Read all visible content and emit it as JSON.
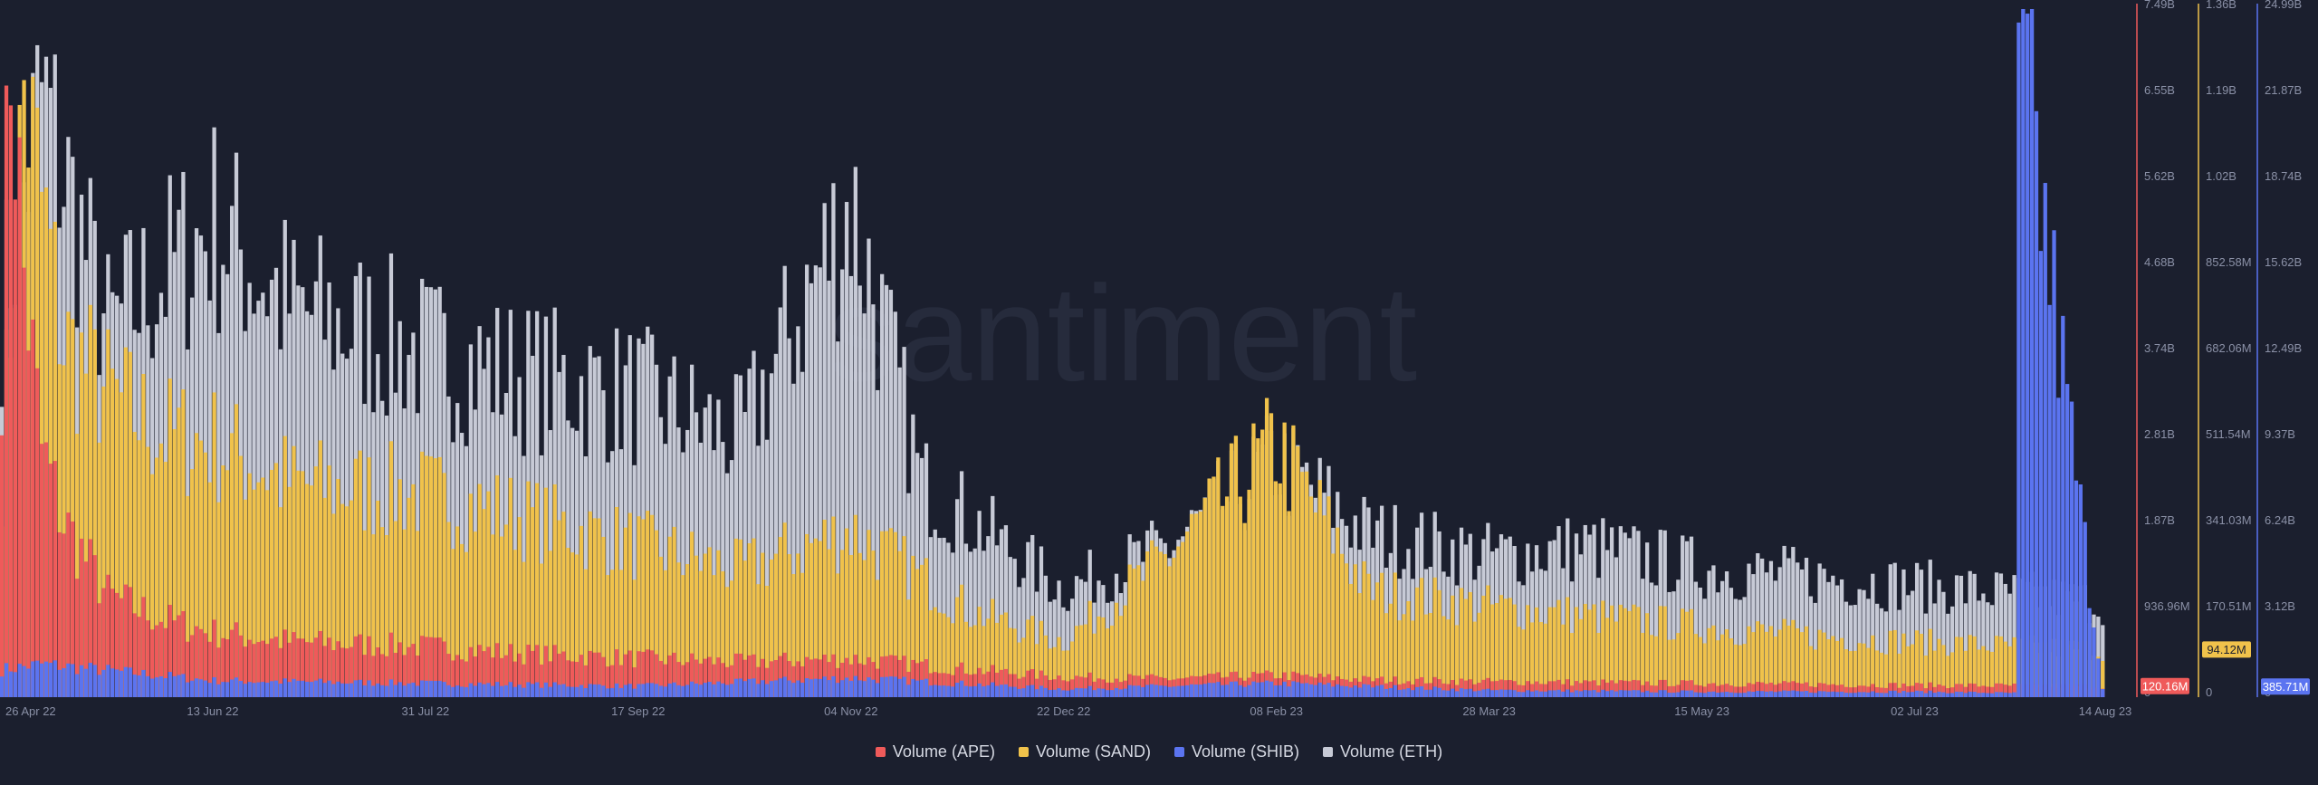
{
  "chart_data": {
    "type": "bar",
    "stacked": true,
    "watermark": "santiment",
    "x_tick_labels": [
      "26 Apr 22",
      "13 Jun 22",
      "31 Jul 22",
      "17 Sep 22",
      "04 Nov 22",
      "22 Dec 22",
      "08 Feb 23",
      "28 Mar 23",
      "15 May 23",
      "02 Jul 23",
      "14 Aug 23"
    ],
    "x_range": [
      "2022-04-26",
      "2023-08-14"
    ],
    "axes": [
      {
        "series": "Volume (APE)",
        "color": "#ef5a5a",
        "ticks": [
          "7.49B",
          "6.55B",
          "5.62B",
          "4.68B",
          "3.74B",
          "2.81B",
          "1.87B",
          "936.96M",
          "0"
        ],
        "ylim": [
          0,
          7490000000
        ],
        "current": "120.16M"
      },
      {
        "series": "Volume (SAND)",
        "color": "#f0c24b",
        "ticks": [
          "1.36B",
          "1.19B",
          "1.02B",
          "852.58M",
          "682.06M",
          "511.54M",
          "341.03M",
          "170.51M",
          "0"
        ],
        "ylim": [
          0,
          1360000000
        ],
        "current": "94.12M"
      },
      {
        "series": "Volume (SHIB)",
        "color": "#5b74f0",
        "ticks": [
          "24.99B",
          "21.87B",
          "18.74B",
          "15.62B",
          "12.49B",
          "9.37B",
          "6.24B",
          "3.12B",
          "0"
        ],
        "ylim": [
          0,
          24990000000
        ],
        "current": "385.71M"
      }
    ],
    "series": [
      {
        "name": "Volume (APE)",
        "color": "#ef5a5a",
        "unit": "USD",
        "dates": [
          "2022-04-26",
          "2022-04-28",
          "2022-05-01",
          "2022-05-05",
          "2022-05-10",
          "2022-05-20",
          "2022-06-01",
          "2022-06-13",
          "2022-07-01",
          "2022-07-31",
          "2022-08-20",
          "2022-09-17",
          "2022-10-10",
          "2022-11-04",
          "2022-12-01",
          "2022-12-22",
          "2023-01-15",
          "2023-02-08",
          "2023-03-01",
          "2023-03-28",
          "2023-04-20",
          "2023-05-15",
          "2023-06-10",
          "2023-07-02",
          "2023-07-25",
          "2023-08-14"
        ],
        "values": [
          3800000000,
          7200000000,
          4600000000,
          2700000000,
          1900000000,
          1100000000,
          850000000,
          700000000,
          600000000,
          550000000,
          480000000,
          420000000,
          380000000,
          420000000,
          300000000,
          220000000,
          200000000,
          240000000,
          190000000,
          170000000,
          160000000,
          150000000,
          140000000,
          130000000,
          125000000,
          120160000
        ]
      },
      {
        "name": "Volume (SAND)",
        "color": "#f0c24b",
        "unit": "USD",
        "dates": [
          "2022-04-26",
          "2022-05-01",
          "2022-05-10",
          "2022-05-20",
          "2022-06-01",
          "2022-06-13",
          "2022-07-01",
          "2022-07-31",
          "2022-08-20",
          "2022-09-17",
          "2022-10-10",
          "2022-11-04",
          "2022-12-01",
          "2022-12-22",
          "2023-01-15",
          "2023-02-08",
          "2023-03-01",
          "2023-03-28",
          "2023-04-20",
          "2023-05-15",
          "2023-06-10",
          "2023-07-02",
          "2023-07-25",
          "2023-08-14"
        ],
        "values": [
          450000000,
          1200000000,
          700000000,
          600000000,
          520000000,
          500000000,
          420000000,
          400000000,
          360000000,
          300000000,
          250000000,
          330000000,
          170000000,
          110000000,
          280000000,
          500000000,
          210000000,
          180000000,
          160000000,
          140000000,
          120000000,
          110000000,
          100000000,
          94120000
        ]
      },
      {
        "name": "Volume (SHIB)",
        "color": "#5b74f0",
        "unit": "USD",
        "dates": [
          "2022-04-26",
          "2022-05-05",
          "2022-06-13",
          "2022-07-31",
          "2022-09-17",
          "2022-11-04",
          "2022-12-22",
          "2023-02-08",
          "2023-03-28",
          "2023-05-15",
          "2023-07-02",
          "2023-07-25",
          "2023-07-26",
          "2023-08-14"
        ],
        "values": [
          1000000000,
          1200000000,
          600000000,
          500000000,
          400000000,
          700000000,
          300000000,
          500000000,
          250000000,
          200000000,
          200000000,
          150000000,
          24500000000,
          385710000
        ]
      },
      {
        "name": "Volume (ETH)",
        "color": "#c7cad6",
        "unit": "USD",
        "dates": [
          "2022-04-26",
          "2022-05-05",
          "2022-05-20",
          "2022-06-13",
          "2022-07-01",
          "2022-07-31",
          "2022-08-20",
          "2022-09-17",
          "2022-10-10",
          "2022-11-04",
          "2022-11-20",
          "2022-12-22",
          "2023-01-15",
          "2023-02-08",
          "2023-03-01",
          "2023-03-28",
          "2023-04-20",
          "2023-05-15",
          "2023-06-10",
          "2023-07-02",
          "2023-07-25",
          "2023-08-14"
        ],
        "values": [
          9000000000,
          14000000000,
          8500000000,
          11000000000,
          9000000000,
          8000000000,
          7500000000,
          7000000000,
          6000000000,
          11500000000,
          5000000000,
          2500000000,
          3500000000,
          5500000000,
          3800000000,
          3300000000,
          3500000000,
          3000000000,
          2800000000,
          2600000000,
          2400000000,
          2200000000
        ]
      }
    ],
    "grid": false,
    "legend_position": "bottom"
  },
  "legend": [
    {
      "label": "Volume (APE)",
      "color": "#ef5a5a"
    },
    {
      "label": "Volume (SAND)",
      "color": "#f0c24b"
    },
    {
      "label": "Volume (SHIB)",
      "color": "#5b74f0"
    },
    {
      "label": "Volume (ETH)",
      "color": "#c7cad6"
    }
  ]
}
